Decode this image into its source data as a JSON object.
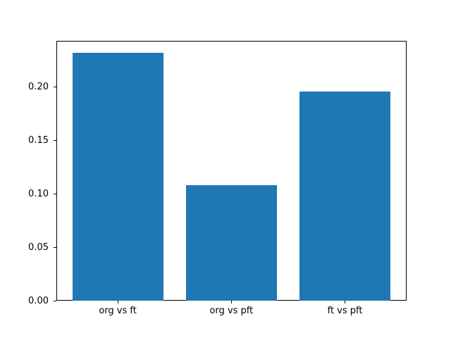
{
  "chart_data": {
    "type": "bar",
    "categories": [
      "org vs ft",
      "org vs pft",
      "ft vs pft"
    ],
    "values": [
      0.232,
      0.108,
      0.196
    ],
    "ytick_labels": [
      "0.00",
      "0.05",
      "0.10",
      "0.15",
      "0.20"
    ],
    "yticks": [
      0.0,
      0.05,
      0.1,
      0.15,
      0.2
    ],
    "ylim": [
      0,
      0.2437
    ],
    "xlim": [
      -0.54,
      2.54
    ],
    "bar_width": 0.8,
    "bar_color": "#1f77b4",
    "grid": false,
    "legend_position": "none"
  },
  "figure": {
    "background_color": "#ffffff",
    "spine_color": "#000000"
  }
}
